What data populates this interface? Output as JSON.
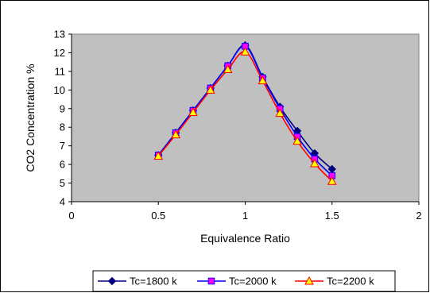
{
  "chart_data": {
    "type": "line",
    "xlabel": "Equivalence Ratio",
    "ylabel": "CO2  Concentration %",
    "xlim": [
      0,
      2
    ],
    "ylim": [
      4,
      13
    ],
    "xticks": [
      "0",
      "0.5",
      "1",
      "1.5",
      "2"
    ],
    "xtick_values": [
      0,
      0.5,
      1,
      1.5,
      2
    ],
    "yticks": [
      "4",
      "5",
      "6",
      "7",
      "8",
      "9",
      "10",
      "11",
      "12",
      "13"
    ],
    "ytick_values": [
      4,
      5,
      6,
      7,
      8,
      9,
      10,
      11,
      12,
      13
    ],
    "grid": false,
    "legend_position": "bottom",
    "plot_background": "#c0c0c0",
    "x": [
      0.5,
      0.6,
      0.7,
      0.8,
      0.9,
      1.0,
      1.1,
      1.2,
      1.3,
      1.4,
      1.5
    ],
    "series": [
      {
        "name": "Tc=1800 k",
        "color": "#000080",
        "fill": "#000080",
        "marker": "diamond",
        "values": [
          6.5,
          7.7,
          8.9,
          10.1,
          11.3,
          12.4,
          10.7,
          9.1,
          7.8,
          6.6,
          5.75
        ]
      },
      {
        "name": "Tc=2000 k",
        "color": "#0000ff",
        "fill": "#ff00ff",
        "marker": "square",
        "values": [
          6.5,
          7.7,
          8.9,
          10.1,
          11.3,
          12.35,
          10.65,
          9.0,
          7.5,
          6.3,
          5.4
        ]
      },
      {
        "name": "Tc=2200 k",
        "color": "#ff0000",
        "fill": "#ffff00",
        "marker": "triangle",
        "values": [
          6.45,
          7.6,
          8.8,
          10.0,
          11.1,
          12.05,
          10.5,
          8.75,
          7.25,
          6.05,
          5.1
        ]
      }
    ]
  }
}
